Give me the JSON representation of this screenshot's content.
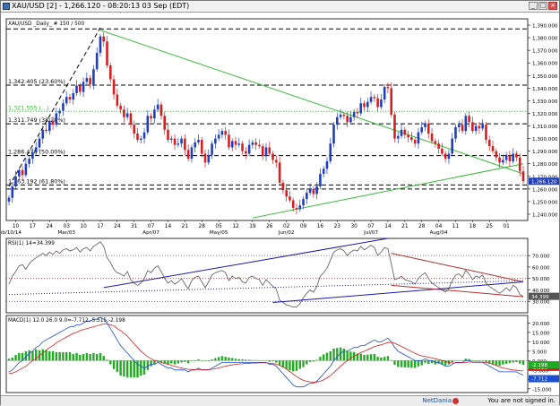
{
  "window": {
    "title": "XAU/USD [2] - 1,266.120 - 08:20:13  03 Sep (EDT)"
  },
  "status": {
    "brand": "NetDania",
    "message": "You are not signed in."
  },
  "colors": {
    "bull": "#1f3fbf",
    "bear": "#d42020",
    "trend_green": "#33bb33",
    "grid": "#000000",
    "fib_green": "#33bb33",
    "rsi_line": "#555555",
    "rsi_trend_blue": "#1a1aa8",
    "rsi_trend_red": "#b03030",
    "macd_hist": "#22aa22",
    "macd_line": "#1a4fd1",
    "macd_signal": "#d42020"
  },
  "chart_data": [
    {
      "type": "candlestick",
      "title": "XAU/USD _Daily_ # 150 / 500",
      "ylim": [
        1235,
        1395
      ],
      "yticks": [
        1240,
        1250,
        1260,
        1270,
        1280,
        1290,
        1300,
        1310,
        1320,
        1330,
        1340,
        1350,
        1360,
        1370,
        1380,
        1390
      ],
      "ytick_labels": [
        "1,240.000",
        "1,250.000",
        "1,260.000",
        "1,270.000",
        "1,280.000",
        "1,290.000",
        "1,300.000",
        "1,310.000",
        "1,320.000",
        "1,330.000",
        "1,340.000",
        "1,350.000",
        "1,360.000",
        "1,370.000",
        "1,380.000",
        "1,390.000"
      ],
      "xlabels": [
        {
          "label": "10",
          "index": 2
        },
        {
          "label": "17",
          "index": 7
        },
        {
          "label": "24",
          "index": 12
        },
        {
          "label": "03",
          "index": 17
        },
        {
          "label": "10",
          "index": 22
        },
        {
          "label": "17",
          "index": 27
        },
        {
          "label": "24",
          "index": 32
        },
        {
          "label": "31",
          "index": 37
        },
        {
          "label": "07",
          "index": 42
        },
        {
          "label": "14",
          "index": 47
        },
        {
          "label": "21",
          "index": 52
        },
        {
          "label": "28",
          "index": 57
        },
        {
          "label": "05",
          "index": 62
        },
        {
          "label": "12",
          "index": 67
        },
        {
          "label": "19",
          "index": 72
        },
        {
          "label": "26",
          "index": 77
        },
        {
          "label": "02",
          "index": 82
        },
        {
          "label": "09",
          "index": 87
        },
        {
          "label": "16",
          "index": 92
        },
        {
          "label": "23",
          "index": 97
        },
        {
          "label": "30",
          "index": 102
        },
        {
          "label": "07",
          "index": 107
        },
        {
          "label": "14",
          "index": 112
        },
        {
          "label": "21",
          "index": 117
        },
        {
          "label": "28",
          "index": 122
        },
        {
          "label": "04",
          "index": 127
        },
        {
          "label": "11",
          "index": 132
        },
        {
          "label": "18",
          "index": 137
        },
        {
          "label": "25",
          "index": 142
        },
        {
          "label": "01",
          "index": 147
        }
      ],
      "month_labels": [
        {
          "label": "Feb/10/14",
          "index": 0
        },
        {
          "label": "Mar/03",
          "index": 17
        },
        {
          "label": "Apr/07",
          "index": 42
        },
        {
          "label": "May/05",
          "index": 62
        },
        {
          "label": "Jun/02",
          "index": 82
        },
        {
          "label": "Jul/07",
          "index": 107
        },
        {
          "label": "Aug/04",
          "index": 127
        }
      ],
      "closes": [
        1253,
        1262,
        1270,
        1275,
        1271,
        1280,
        1284,
        1289,
        1293,
        1300,
        1307,
        1306,
        1314,
        1311,
        1320,
        1322,
        1328,
        1333,
        1331,
        1336,
        1342,
        1337,
        1345,
        1348,
        1343,
        1355,
        1368,
        1381,
        1377,
        1358,
        1347,
        1335,
        1326,
        1323,
        1317,
        1320,
        1311,
        1304,
        1299,
        1300,
        1305,
        1318,
        1316,
        1323,
        1327,
        1318,
        1307,
        1299,
        1300,
        1295,
        1296,
        1300,
        1291,
        1284,
        1293,
        1297,
        1299,
        1288,
        1281,
        1287,
        1296,
        1300,
        1303,
        1306,
        1303,
        1293,
        1298,
        1295,
        1296,
        1290,
        1288,
        1295,
        1297,
        1295,
        1294,
        1286,
        1293,
        1288,
        1283,
        1281,
        1265,
        1259,
        1254,
        1251,
        1245,
        1244,
        1247,
        1252,
        1257,
        1260,
        1256,
        1262,
        1272,
        1276,
        1282,
        1296,
        1311,
        1317,
        1319,
        1318,
        1313,
        1317,
        1321,
        1320,
        1328,
        1325,
        1329,
        1333,
        1332,
        1325,
        1331,
        1341,
        1340,
        1319,
        1300,
        1302,
        1307,
        1303,
        1301,
        1299,
        1296,
        1305,
        1309,
        1312,
        1304,
        1298,
        1296,
        1292,
        1288,
        1284,
        1288,
        1300,
        1309,
        1311,
        1306,
        1318,
        1313,
        1306,
        1310,
        1308,
        1311,
        1299,
        1294,
        1290,
        1285,
        1281,
        1283,
        1287,
        1282,
        1288,
        1285,
        1274,
        1266.12
      ],
      "last_price_label": "1,266.120",
      "trendlines": [
        {
          "from": [
            0,
            1262
          ],
          "to": [
            27,
            1388
          ],
          "style": "dashed",
          "color": "#000000"
        },
        {
          "from": [
            27,
            1386
          ],
          "to": [
            152,
            1272
          ],
          "style": "solid",
          "color": "#33bb33"
        },
        {
          "from": [
            72,
            1237
          ],
          "to": [
            152,
            1280
          ],
          "style": "solid",
          "color": "#33bb33"
        }
      ],
      "levels": [
        {
          "value": 1387,
          "label": "",
          "style": "dashed",
          "color": "#000000"
        },
        {
          "value": 1342.405,
          "label": "1,342.405 (23.60%)",
          "style": "dashed",
          "color": "#000000"
        },
        {
          "value": 1321.555,
          "label": "1,321.555 (...)",
          "style": "dotted",
          "color": "#33bb33"
        },
        {
          "value": 1311.749,
          "label": "1,311.749 (38.20%)",
          "style": "dashed",
          "color": "#000000"
        },
        {
          "value": 1286.47,
          "label": "1,286.470 (50.00%)",
          "style": "dashed",
          "color": "#000000"
        },
        {
          "value": 1263.192,
          "label": "1,263.192 (61.80%)",
          "style": "dashed",
          "color": "#000000"
        },
        {
          "value": 1260,
          "label": "",
          "style": "dashed",
          "color": "#000000"
        }
      ]
    },
    {
      "type": "line",
      "title": "RSI(1) 14=34.399",
      "ylim": [
        20,
        85
      ],
      "yticks": [
        30,
        40,
        50,
        60,
        70
      ],
      "ytick_labels": [
        "30.000",
        "40.000",
        "50.000",
        "60.000",
        "70.000"
      ],
      "last_value_label": "34.399",
      "values": [
        45,
        52,
        56,
        61,
        62,
        58,
        63,
        66,
        68,
        70,
        72,
        70,
        73,
        71,
        74,
        72,
        75,
        76,
        74,
        75,
        77,
        73,
        76,
        77,
        74,
        78,
        80,
        82,
        78,
        68,
        64,
        58,
        55,
        54,
        52,
        56,
        49,
        46,
        44,
        46,
        50,
        57,
        55,
        59,
        61,
        56,
        50,
        46,
        48,
        45,
        47,
        50,
        45,
        41,
        48,
        51,
        52,
        47,
        42,
        47,
        53,
        55,
        56,
        57,
        55,
        48,
        52,
        50,
        51,
        47,
        46,
        51,
        52,
        50,
        49,
        44,
        49,
        46,
        43,
        41,
        31,
        29,
        27,
        26,
        25,
        25,
        28,
        33,
        37,
        40,
        38,
        43,
        52,
        55,
        59,
        66,
        73,
        75,
        76,
        74,
        70,
        73,
        75,
        74,
        78,
        75,
        77,
        79,
        77,
        70,
        73,
        77,
        76,
        63,
        49,
        50,
        52,
        49,
        48,
        47,
        45,
        50,
        53,
        55,
        50,
        46,
        44,
        42,
        40,
        38,
        41,
        48,
        53,
        54,
        51,
        57,
        54,
        49,
        52,
        51,
        53,
        46,
        43,
        41,
        39,
        37,
        39,
        42,
        39,
        44,
        42,
        36,
        34.399
      ],
      "levels": [
        {
          "value": 70,
          "style": "dotted",
          "color": "#b03030"
        },
        {
          "value": 50,
          "style": "dotted",
          "color": "#b03030"
        },
        {
          "value": 30,
          "style": "dotted",
          "color": "#1a1aa8"
        }
      ],
      "trendlines": [
        {
          "from": [
            28,
            42
          ],
          "to": [
            112,
            85
          ],
          "color": "#1a1aa8"
        },
        {
          "from": [
            0,
            36
          ],
          "to": [
            152,
            48
          ],
          "color": "#1a1aa8",
          "style": "dotted"
        },
        {
          "from": [
            78,
            29
          ],
          "to": [
            152,
            47
          ],
          "color": "#1a1aa8"
        },
        {
          "from": [
            113,
            72
          ],
          "to": [
            152,
            47
          ],
          "color": "#b03030"
        },
        {
          "from": [
            113,
            44
          ],
          "to": [
            152,
            34
          ],
          "color": "#b03030"
        }
      ]
    },
    {
      "type": "bar+line",
      "title": "MACD(1) 12.0 26.0 9.0=-7.712,-5.515,-2.198",
      "ylim": [
        -17,
        24
      ],
      "yticks": [
        -15,
        -10,
        -5,
        0,
        5,
        10,
        15,
        20
      ],
      "ytick_labels": [
        "-15.000",
        "-10.000",
        "-5.000",
        "0.000",
        "5.000",
        "10.000",
        "15.000",
        "20.000"
      ],
      "last_value_labels": [
        "-7.712",
        "-5.515",
        "-2.198"
      ],
      "macd": [
        -6,
        -5,
        -3,
        -1,
        0,
        2,
        4,
        5,
        7,
        8,
        10,
        11,
        12,
        13,
        14,
        15,
        16,
        17,
        18,
        18,
        19,
        19,
        20,
        21,
        21,
        22,
        22,
        23,
        22,
        20,
        17,
        14,
        11,
        8,
        6,
        4,
        2,
        0,
        -2,
        -3,
        -4,
        -3,
        -2,
        -2,
        -1,
        -2,
        -3,
        -4,
        -4,
        -5,
        -5,
        -5,
        -5,
        -6,
        -5,
        -5,
        -4,
        -5,
        -5,
        -5,
        -4,
        -3,
        -2,
        -1,
        -1,
        -1,
        -1,
        -1,
        -1,
        -1,
        -1,
        -1,
        -1,
        -1,
        -1,
        -1,
        -1,
        -2,
        -2,
        -3,
        -5,
        -7,
        -9,
        -11,
        -13,
        -14,
        -14,
        -14,
        -13,
        -12,
        -12,
        -11,
        -9,
        -7,
        -5,
        -3,
        0,
        2,
        4,
        5,
        5,
        6,
        7,
        7,
        8,
        8,
        9,
        10,
        11,
        10,
        10,
        11,
        12,
        10,
        7,
        5,
        4,
        3,
        2,
        1,
        0,
        0,
        0,
        1,
        0,
        0,
        -1,
        -1,
        -2,
        -3,
        -3,
        -2,
        -1,
        -1,
        -1,
        0,
        0,
        -1,
        -1,
        -1,
        -1,
        -2,
        -3,
        -4,
        -5,
        -6,
        -6,
        -6,
        -6,
        -6,
        -6,
        -7,
        -7.712
      ],
      "signal": [
        -7,
        -6.6,
        -6,
        -5,
        -4,
        -3,
        -1.5,
        0,
        1,
        2.5,
        4,
        5.5,
        7,
        8,
        9.5,
        10.5,
        11.5,
        12.5,
        13.5,
        14.5,
        15,
        16,
        16.5,
        17,
        17.5,
        18,
        18.5,
        19,
        19.5,
        19.5,
        19,
        18.5,
        17,
        16,
        14.5,
        13,
        11,
        9,
        7,
        5,
        3.5,
        2,
        1,
        0,
        -0.5,
        -1,
        -1.5,
        -2,
        -2.5,
        -3,
        -3.5,
        -4,
        -4.3,
        -4.6,
        -4.8,
        -4.8,
        -4.7,
        -4.8,
        -4.8,
        -4.8,
        -4.6,
        -4.3,
        -3.9,
        -3.4,
        -3,
        -2.6,
        -2.3,
        -2,
        -1.8,
        -1.7,
        -1.5,
        -1.4,
        -1.3,
        -1.3,
        -1.2,
        -1.2,
        -1.2,
        -1.4,
        -1.6,
        -1.9,
        -2.5,
        -3.4,
        -4.5,
        -5.8,
        -7.2,
        -8.5,
        -9.6,
        -10.5,
        -11,
        -11.3,
        -11.5,
        -11.4,
        -11,
        -10.3,
        -9.2,
        -8,
        -6.4,
        -4.7,
        -3,
        -1.4,
        -0.1,
        1.2,
        2.4,
        3.3,
        4.3,
        5,
        5.8,
        6.6,
        7.5,
        8,
        8.4,
        9,
        9.6,
        9.7,
        9.2,
        8.4,
        7.5,
        6.6,
        5.7,
        4.8,
        3.9,
        3.1,
        2.5,
        2.2,
        1.8,
        1.4,
        1,
        0.6,
        0.1,
        -0.5,
        -1,
        -1.2,
        -1.2,
        -1.2,
        -1.2,
        -1,
        -0.8,
        -0.8,
        -0.8,
        -0.8,
        -0.8,
        -1,
        -1.4,
        -2,
        -2.6,
        -3.3,
        -3.9,
        -4.3,
        -4.7,
        -5,
        -5.2,
        -5.4,
        -5.515
      ]
    }
  ]
}
